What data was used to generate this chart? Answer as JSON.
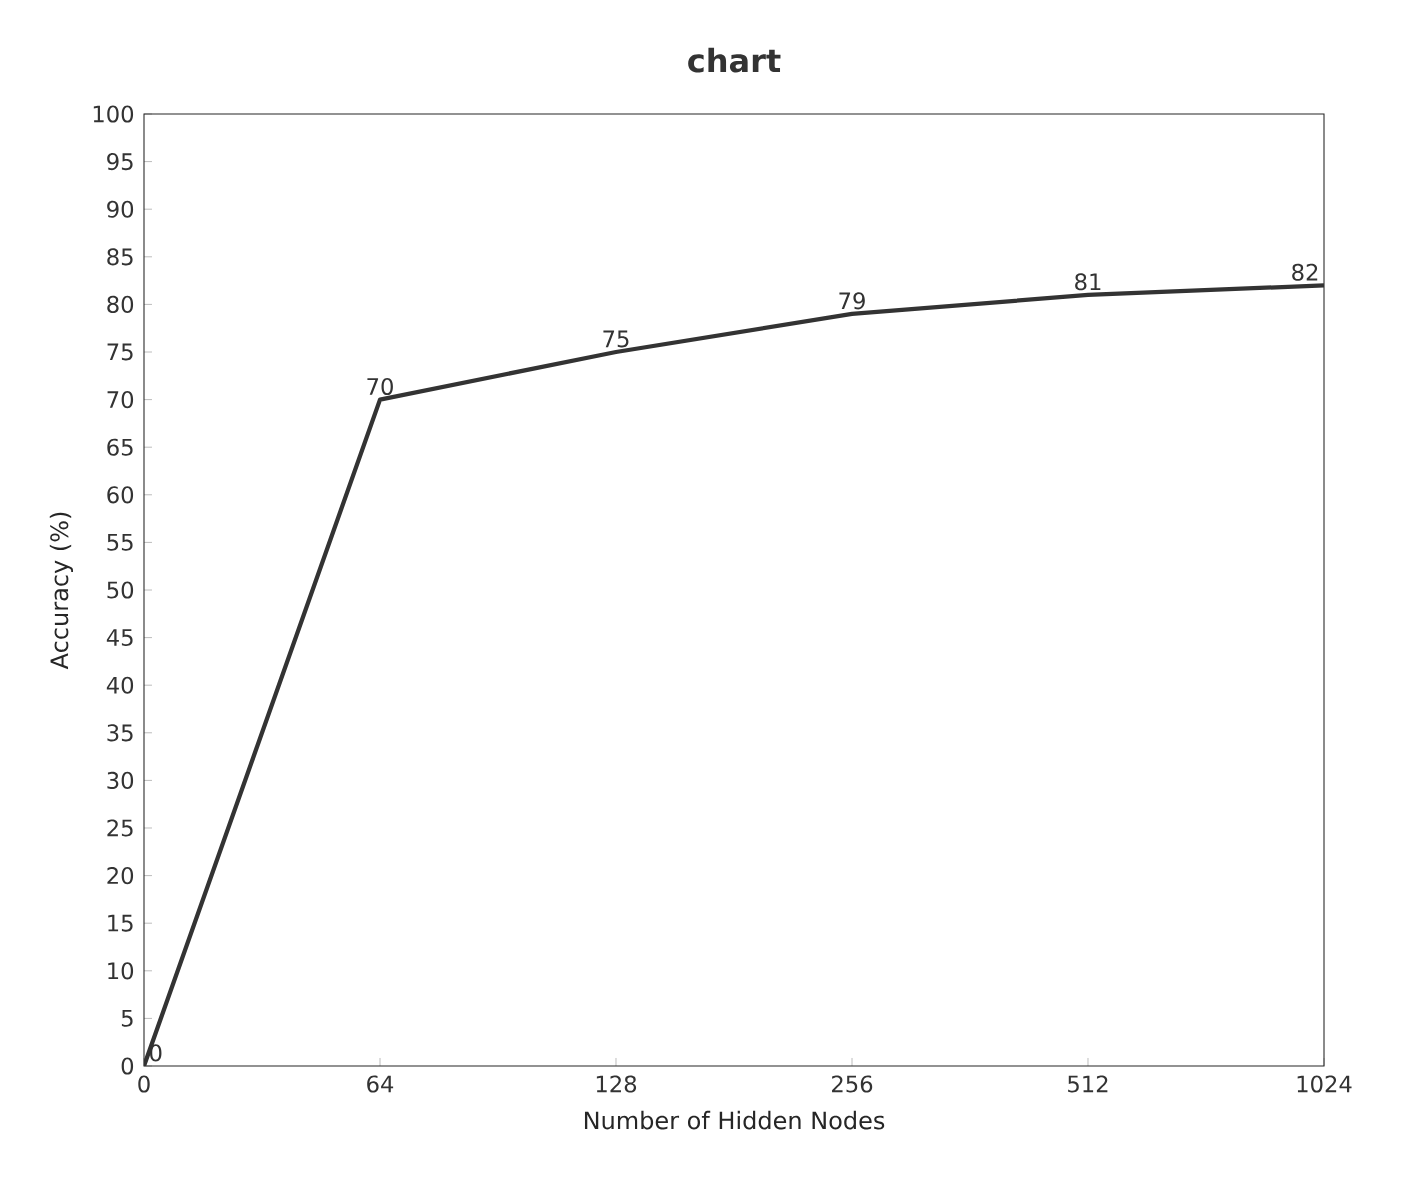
{
  "chart_data": {
    "type": "line",
    "title": "chart",
    "xlabel": "Number of Hidden Nodes",
    "ylabel": "Accuracy (%)",
    "categories": [
      "0",
      "64",
      "128",
      "256",
      "512",
      "1024"
    ],
    "series": [
      {
        "color": "#333333",
        "values": [
          0,
          70,
          75,
          79,
          81,
          82
        ]
      }
    ],
    "ylim": [
      0,
      100
    ],
    "yticks": [
      0,
      5,
      10,
      15,
      20,
      25,
      30,
      35,
      40,
      45,
      50,
      55,
      60,
      65,
      70,
      75,
      80,
      85,
      90,
      95,
      100
    ],
    "data_labels": true,
    "grid": false,
    "marker": "none",
    "line_style": "solid"
  }
}
